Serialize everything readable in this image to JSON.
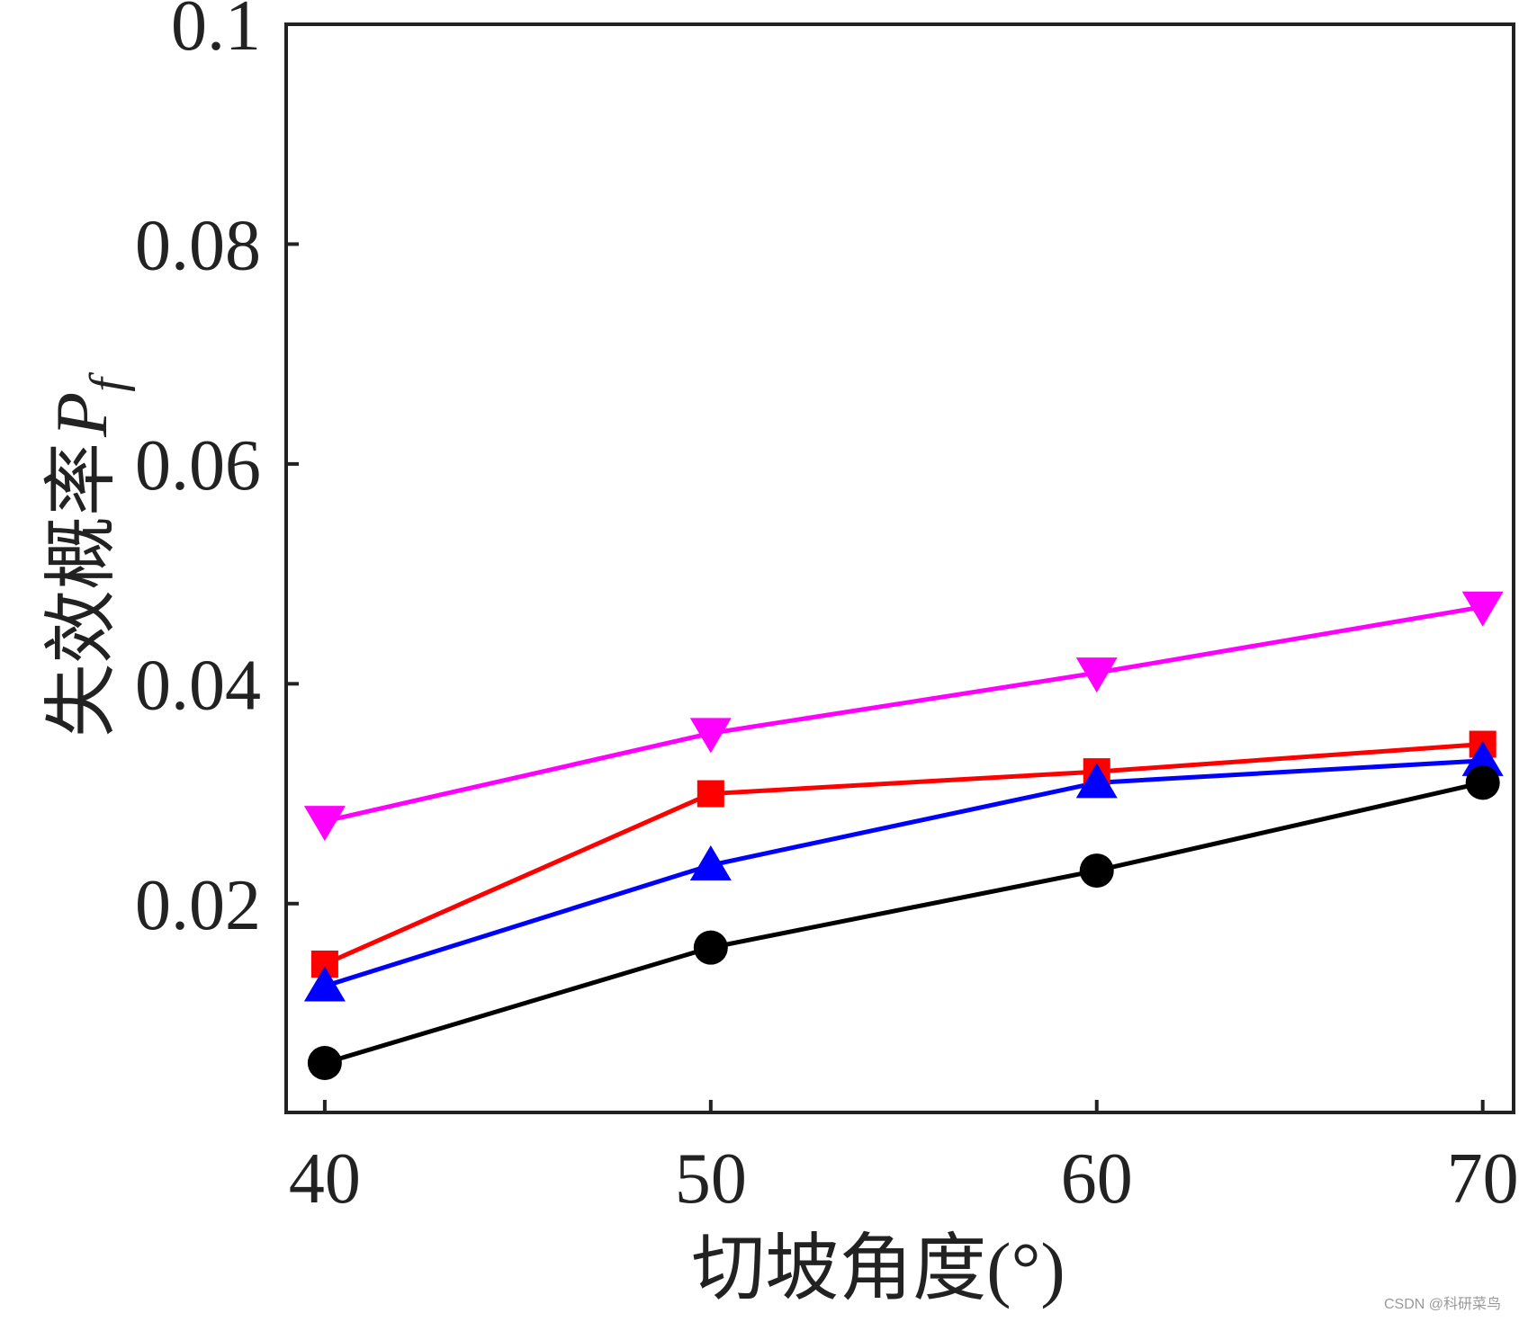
{
  "chart_data": {
    "type": "line",
    "title": "",
    "xlabel": "切坡角度(°)",
    "ylabel": "失效概率",
    "ylabel_symbol": "P",
    "ylabel_subscript": "f",
    "x": [
      40,
      50,
      60,
      70
    ],
    "x_ticks": [
      "40",
      "50",
      "60",
      "70"
    ],
    "y_ticks": [
      "0.02",
      "0.04",
      "0.06",
      "0.08",
      "0.1"
    ],
    "xlim": [
      39,
      70.8
    ],
    "ylim": [
      0.001,
      0.1
    ],
    "grid": false,
    "series": [
      {
        "name": "magenta-down-triangle",
        "color": "#ff00ff",
        "marker": "triangle-down",
        "values": [
          0.0275,
          0.0355,
          0.041,
          0.047
        ]
      },
      {
        "name": "red-square",
        "color": "#ff0000",
        "marker": "square",
        "values": [
          0.0145,
          0.03,
          0.032,
          0.0345
        ]
      },
      {
        "name": "blue-up-triangle",
        "color": "#0000ff",
        "marker": "triangle-up",
        "values": [
          0.0125,
          0.0235,
          0.031,
          0.033
        ]
      },
      {
        "name": "black-circle",
        "color": "#000000",
        "marker": "circle",
        "values": [
          0.0055,
          0.016,
          0.023,
          0.031
        ]
      }
    ]
  },
  "watermark": "CSDN @科研菜鸟"
}
